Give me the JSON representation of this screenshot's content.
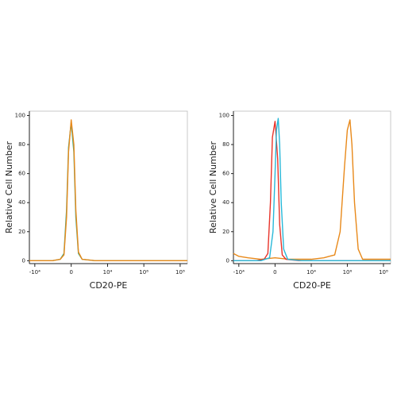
{
  "chart_data": [
    {
      "type": "line",
      "x_label": "CD20-PE",
      "y_label": "Relative Cell Number",
      "xscale": "biexponential",
      "xlim": [
        -20000,
        250000000
      ],
      "ylim": [
        -2,
        103
      ],
      "xticks": [
        {
          "value": -10000,
          "label": "-10⁴"
        },
        0,
        {
          "value": 10000,
          "label": "10⁴"
        },
        {
          "value": 1000000,
          "label": "10⁶"
        },
        {
          "value": 100000000,
          "label": "10⁸"
        }
      ],
      "yticks": [
        0,
        20,
        40,
        60,
        80,
        100
      ],
      "series": [
        {
          "color": "#3aaa8a",
          "x": [
            -20000,
            -1000,
            -300,
            -150,
            -80,
            -40,
            0,
            40,
            80,
            150,
            300,
            2000,
            250000000
          ],
          "values": [
            0,
            0,
            1,
            5,
            35,
            78,
            95,
            75,
            30,
            5,
            1,
            0,
            0
          ]
        },
        {
          "color": "#e8891a",
          "x": [
            -20000,
            -1000,
            -300,
            -150,
            -80,
            -40,
            0,
            40,
            80,
            150,
            300,
            2000,
            250000000
          ],
          "values": [
            0,
            0,
            1,
            4,
            30,
            75,
            97,
            80,
            35,
            6,
            1,
            0,
            0
          ]
        }
      ]
    },
    {
      "type": "line",
      "x_label": "CD20-PE",
      "y_label": "Relative Cell Number",
      "xscale": "biexponential",
      "xlim": [
        -20000,
        250000000
      ],
      "ylim": [
        -2,
        103
      ],
      "xticks": [
        {
          "value": -10000,
          "label": "-10⁴"
        },
        0,
        {
          "value": 10000,
          "label": "10⁴"
        },
        {
          "value": 1000000,
          "label": "10⁶"
        },
        {
          "value": 100000000,
          "label": "10⁸"
        }
      ],
      "yticks": [
        0,
        20,
        40,
        60,
        80,
        100
      ],
      "series": [
        {
          "color": "#e8891a",
          "x": [
            -20000,
            -10000,
            -3000,
            -500,
            0,
            500,
            3000,
            10000,
            50000,
            100000,
            200000,
            400000,
            700000,
            1000000,
            1400000,
            1800000,
            2500000,
            4000000,
            7000000,
            250000000
          ],
          "values": [
            5,
            3,
            2,
            1,
            2,
            1,
            1,
            1,
            2,
            3,
            4,
            20,
            65,
            90,
            97,
            80,
            40,
            8,
            1,
            1
          ]
        },
        {
          "color": "#e8332a",
          "x": [
            -20000,
            -1000,
            -300,
            -150,
            -80,
            -40,
            0,
            40,
            80,
            150,
            300,
            2000,
            250000000
          ],
          "values": [
            0,
            0,
            1,
            5,
            40,
            85,
            96,
            70,
            25,
            4,
            1,
            0,
            0
          ]
        },
        {
          "color": "#29b8d8",
          "x": [
            -20000,
            -500,
            -100,
            -30,
            0,
            20,
            50,
            80,
            120,
            200,
            400,
            3000,
            250000000
          ],
          "values": [
            0,
            0,
            2,
            20,
            60,
            90,
            98,
            80,
            40,
            8,
            1,
            0,
            0
          ]
        }
      ]
    }
  ]
}
